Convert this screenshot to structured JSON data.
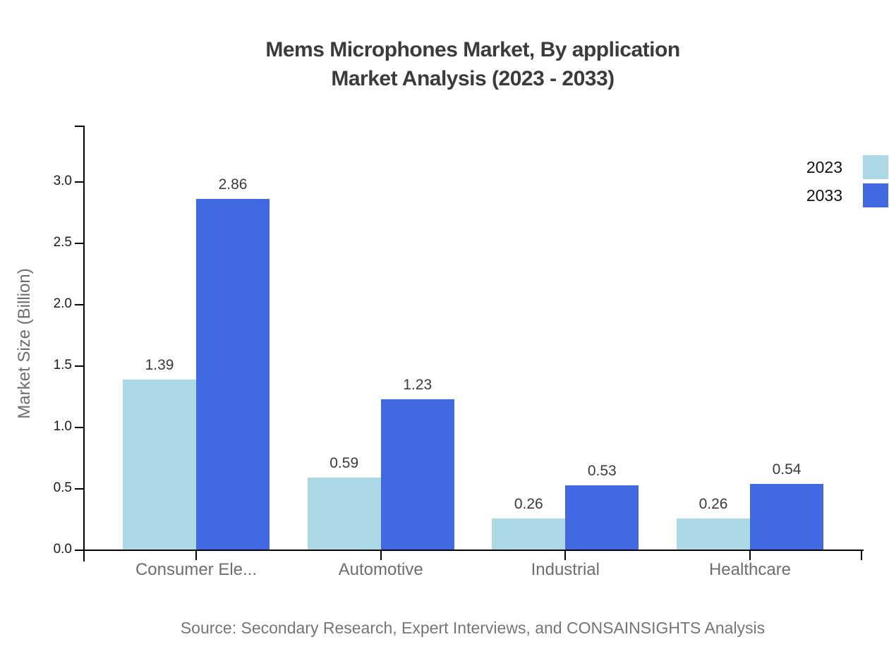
{
  "title": {
    "line1": "Mems Microphones Market, By application",
    "line2": "Market Analysis (2023 - 2033)"
  },
  "source_note": "Source: Secondary Research, Expert Interviews, and CONSAINSIGHTS Analysis",
  "chart_data": {
    "type": "bar",
    "title": "Mems Microphones Market, By application Market Analysis (2023 - 2033)",
    "xlabel": "",
    "ylabel": "Market Size (Billion)",
    "categories": [
      "Consumer Ele...",
      "Automotive",
      "Industrial",
      "Healthcare"
    ],
    "series": [
      {
        "name": "2023",
        "color": "#ADD8E6",
        "values": [
          1.39,
          0.59,
          0.26,
          0.26
        ]
      },
      {
        "name": "2033",
        "color": "#4169E1",
        "values": [
          2.86,
          1.23,
          0.53,
          0.54
        ]
      }
    ],
    "ylim": [
      0,
      3.46
    ],
    "yticks": [
      0.0,
      0.5,
      1.0,
      1.5,
      2.0,
      2.5,
      3.0
    ],
    "grid": false,
    "legend_position": "right",
    "value_labels_decimals": 2,
    "axis_color": "#000000",
    "tick_label_color": "#1a1a1a",
    "category_label_color": "#6e6e6e"
  }
}
